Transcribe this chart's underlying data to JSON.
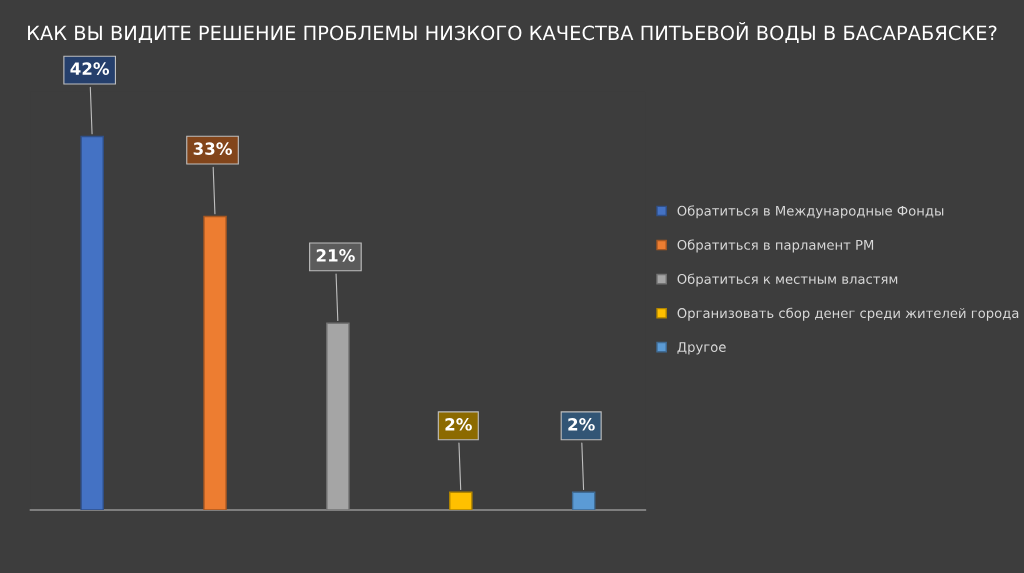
{
  "chart_data": {
    "type": "bar",
    "title": "КАК ВЫ ВИДИТЕ РЕШЕНИЕ ПРОБЛЕМЫ НИЗКОГО КАЧЕСТВА ПИТЬЕВОЙ ВОДЫ В БАСАРАБЯСКЕ?",
    "categories": [
      null,
      null,
      null,
      null,
      null
    ],
    "stacked": true,
    "series": [
      {
        "name": "Обратиться в Международные Фонды",
        "color": "#4472c4",
        "values": [
          42,
          null,
          null,
          null,
          null
        ],
        "value_labels": [
          "42%",
          null,
          null,
          null,
          null
        ]
      },
      {
        "name": "Обратиться в парламент РМ",
        "color": "#ed7d31",
        "values": [
          null,
          33,
          null,
          null,
          null
        ],
        "value_labels": [
          null,
          "33%",
          null,
          null,
          null
        ]
      },
      {
        "name": "Обратиться к местным властям",
        "color": "#a5a5a5",
        "values": [
          null,
          null,
          21,
          null,
          null
        ],
        "value_labels": [
          null,
          null,
          "21%",
          null,
          null
        ]
      },
      {
        "name": "Организовать сбор денег среди жителей города",
        "color": "#ffc000",
        "values": [
          null,
          null,
          null,
          2,
          null
        ],
        "value_labels": [
          null,
          null,
          null,
          "2%",
          null
        ]
      },
      {
        "name": "Другое",
        "color": "#5b9bd5",
        "values": [
          null,
          null,
          null,
          null,
          2
        ],
        "value_labels": [
          null,
          null,
          null,
          null,
          "2%"
        ]
      }
    ],
    "legend": "right",
    "grid": false
  }
}
